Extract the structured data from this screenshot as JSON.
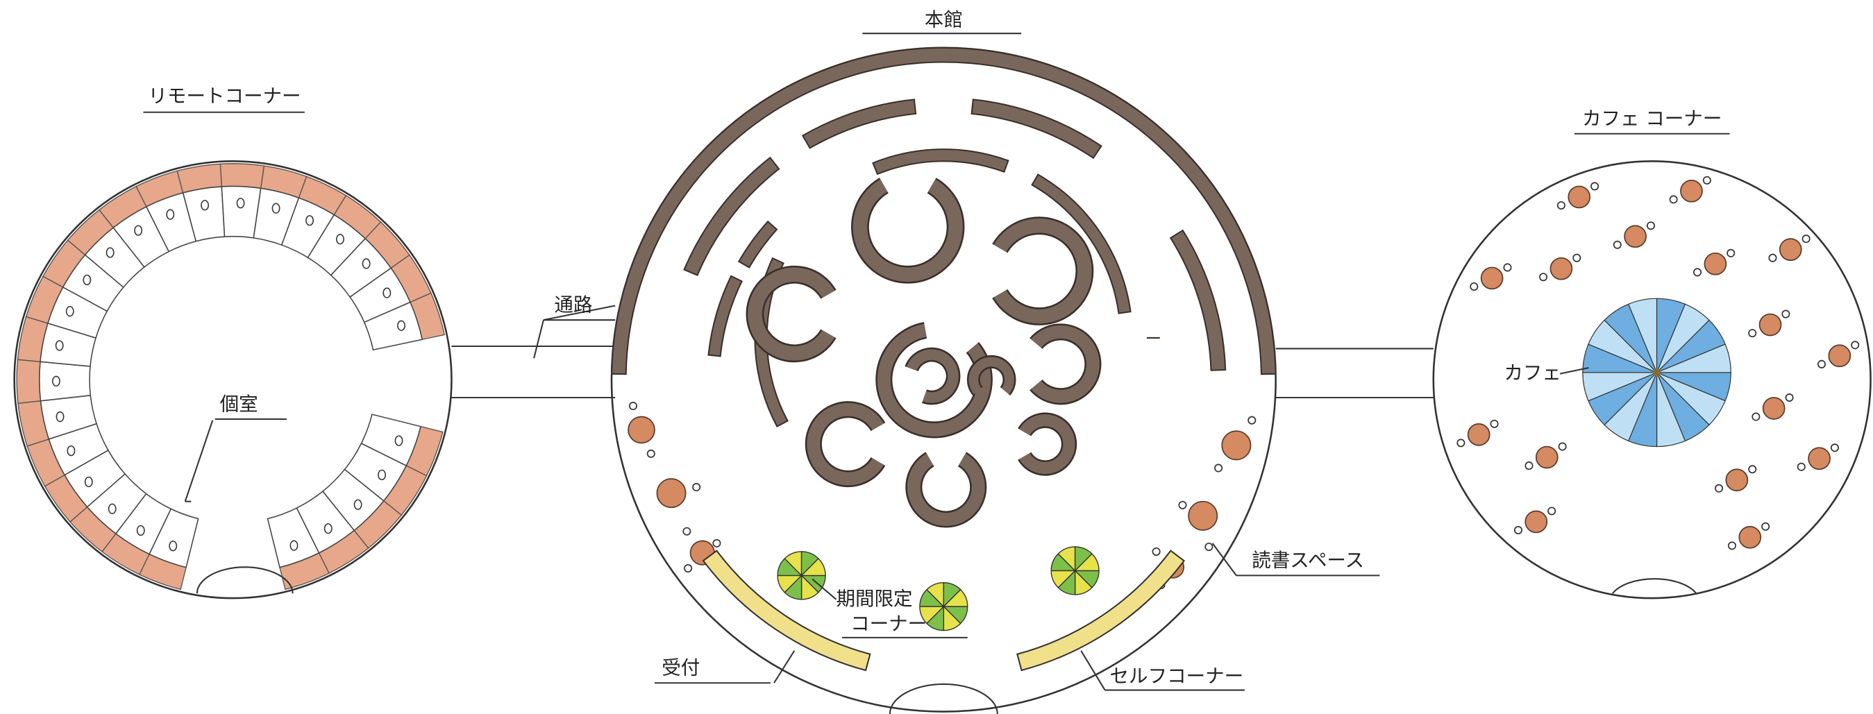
{
  "labels": {
    "main_hall": "本館",
    "remote_corner": "リモートコーナー",
    "cafe_corner": "カフェ コーナー",
    "passage": "通路",
    "private_room": "個室",
    "limited_corner_line1": "期間限定",
    "limited_corner_line2": "コーナー",
    "reception": "受付",
    "self_corner": "セルフコーナー",
    "reading_space": "読書スペース",
    "cafe": "カフェ"
  }
}
